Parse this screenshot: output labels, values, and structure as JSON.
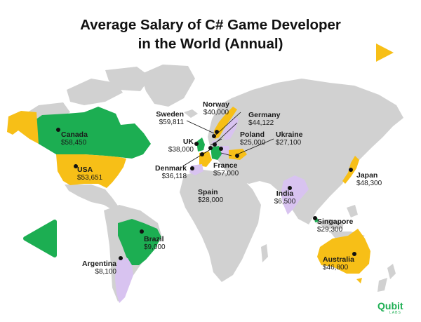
{
  "title": {
    "line1": "Average Salary of C# Game Developer",
    "line2": "in the World (Annual)"
  },
  "colors": {
    "green": "#1cae52",
    "yellow": "#f7bf17",
    "lavender": "#d8c3f0",
    "land": "#d1d1d1",
    "pin": "#111111"
  },
  "countries": [
    {
      "id": "canada",
      "name": "Canada",
      "salary": "$58,450",
      "color": "green"
    },
    {
      "id": "usa",
      "name": "USA",
      "salary": "$53,651",
      "color": "yellow"
    },
    {
      "id": "brazil",
      "name": "Brazil",
      "salary": "$9,000",
      "color": "green"
    },
    {
      "id": "argentina",
      "name": "Argentina",
      "salary": "$8,100",
      "color": "lavender"
    },
    {
      "id": "norway",
      "name": "Norway",
      "salary": "$40,000",
      "color": "yellow"
    },
    {
      "id": "sweden",
      "name": "Sweden",
      "salary": "$59,811",
      "color": "lavender"
    },
    {
      "id": "germany",
      "name": "Germany",
      "salary": "$44,122",
      "color": "green"
    },
    {
      "id": "uk",
      "name": "UK",
      "salary": "$38,000",
      "color": "green"
    },
    {
      "id": "poland",
      "name": "Poland",
      "salary": "$25,000",
      "color": "lavender"
    },
    {
      "id": "ukraine",
      "name": "Ukraine",
      "salary": "$27,100",
      "color": "yellow"
    },
    {
      "id": "denmark",
      "name": "Denmark",
      "salary": "$36,118",
      "color": "lavender"
    },
    {
      "id": "france",
      "name": "France",
      "salary": "$57,000",
      "color": "yellow"
    },
    {
      "id": "spain",
      "name": "Spain",
      "salary": "$28,000",
      "color": "lavender"
    },
    {
      "id": "india",
      "name": "India",
      "salary": "$6,500",
      "color": "lavender"
    },
    {
      "id": "japan",
      "name": "Japan",
      "salary": "$48,300",
      "color": "yellow"
    },
    {
      "id": "singapore",
      "name": "Singapore",
      "salary": "$29,300",
      "color": "green"
    },
    {
      "id": "australia",
      "name": "Australia",
      "salary": "$46,800",
      "color": "yellow"
    }
  ],
  "logo": {
    "text": "Qubit",
    "sub": "LABS"
  }
}
